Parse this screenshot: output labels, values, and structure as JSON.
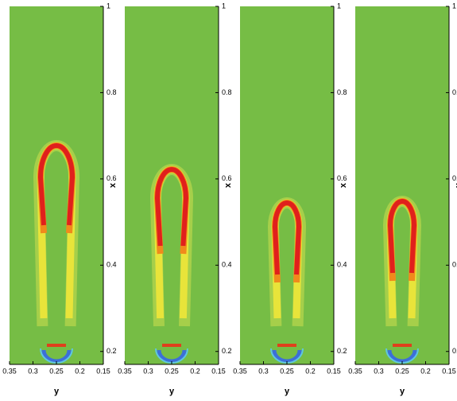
{
  "chart_data": [
    {
      "type": "contour",
      "xlabel": "y",
      "ylabel": "x",
      "xlim": [
        0.35,
        0.15
      ],
      "ylim": [
        0.17,
        1
      ],
      "xticks": [
        0.35,
        0.3,
        0.25,
        0.2,
        0.15
      ],
      "yticks": [
        0.2,
        0.4,
        0.6,
        0.8,
        1
      ]
    },
    {
      "type": "contour",
      "xlabel": "y",
      "ylabel": "x",
      "xlim": [
        0.35,
        0.15
      ],
      "ylim": [
        0.17,
        1
      ],
      "xticks": [
        0.35,
        0.3,
        0.25,
        0.2,
        0.15
      ],
      "yticks": [
        0.2,
        0.4,
        0.6,
        0.8,
        1
      ]
    },
    {
      "type": "contour",
      "xlabel": "y",
      "ylabel": "x",
      "xlim": [
        0.35,
        0.15
      ],
      "ylim": [
        0.17,
        1
      ],
      "xticks": [
        0.35,
        0.3,
        0.25,
        0.2,
        0.15
      ],
      "yticks": [
        0.2,
        0.4,
        0.6,
        0.8,
        1
      ]
    },
    {
      "type": "contour",
      "xlabel": "y",
      "ylabel": "x",
      "xlim": [
        0.35,
        0.15
      ],
      "ylim": [
        0.17,
        1
      ],
      "xticks": [
        0.35,
        0.3,
        0.25,
        0.2,
        0.15
      ],
      "yticks": [
        0.2,
        0.4,
        0.6,
        0.8,
        1
      ]
    }
  ]
}
